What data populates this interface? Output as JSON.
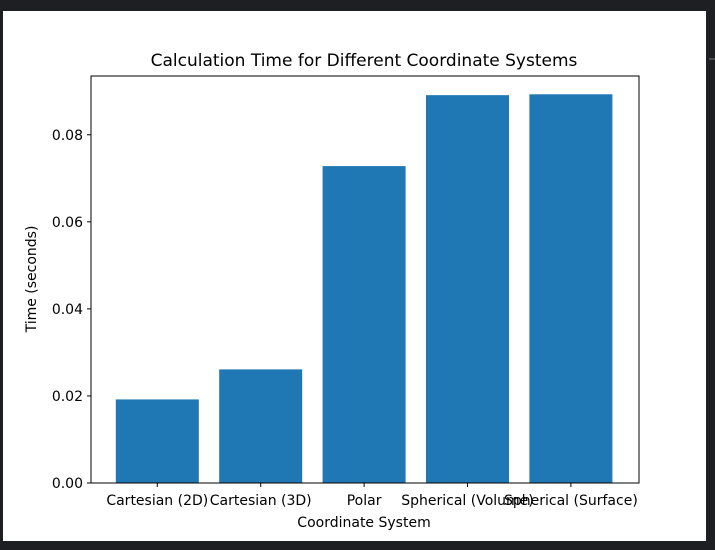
{
  "chart_data": {
    "type": "bar",
    "title": "Calculation Time for Different Coordinate Systems",
    "xlabel": "Coordinate System",
    "ylabel": "Time (seconds)",
    "categories": [
      "Cartesian (2D)",
      "Cartesian (3D)",
      "Polar",
      "Spherical (Volume)",
      "Spherical (Surface)"
    ],
    "values": [
      0.0192,
      0.0261,
      0.0728,
      0.0891,
      0.0893
    ],
    "ylim": [
      0,
      0.0935
    ],
    "yticks": [
      0.0,
      0.02,
      0.04,
      0.06,
      0.08
    ],
    "ytick_labels": [
      "0.00",
      "0.02",
      "0.04",
      "0.06",
      "0.08"
    ],
    "bar_color": "#1f77b4",
    "grid": false,
    "legend": "none"
  }
}
